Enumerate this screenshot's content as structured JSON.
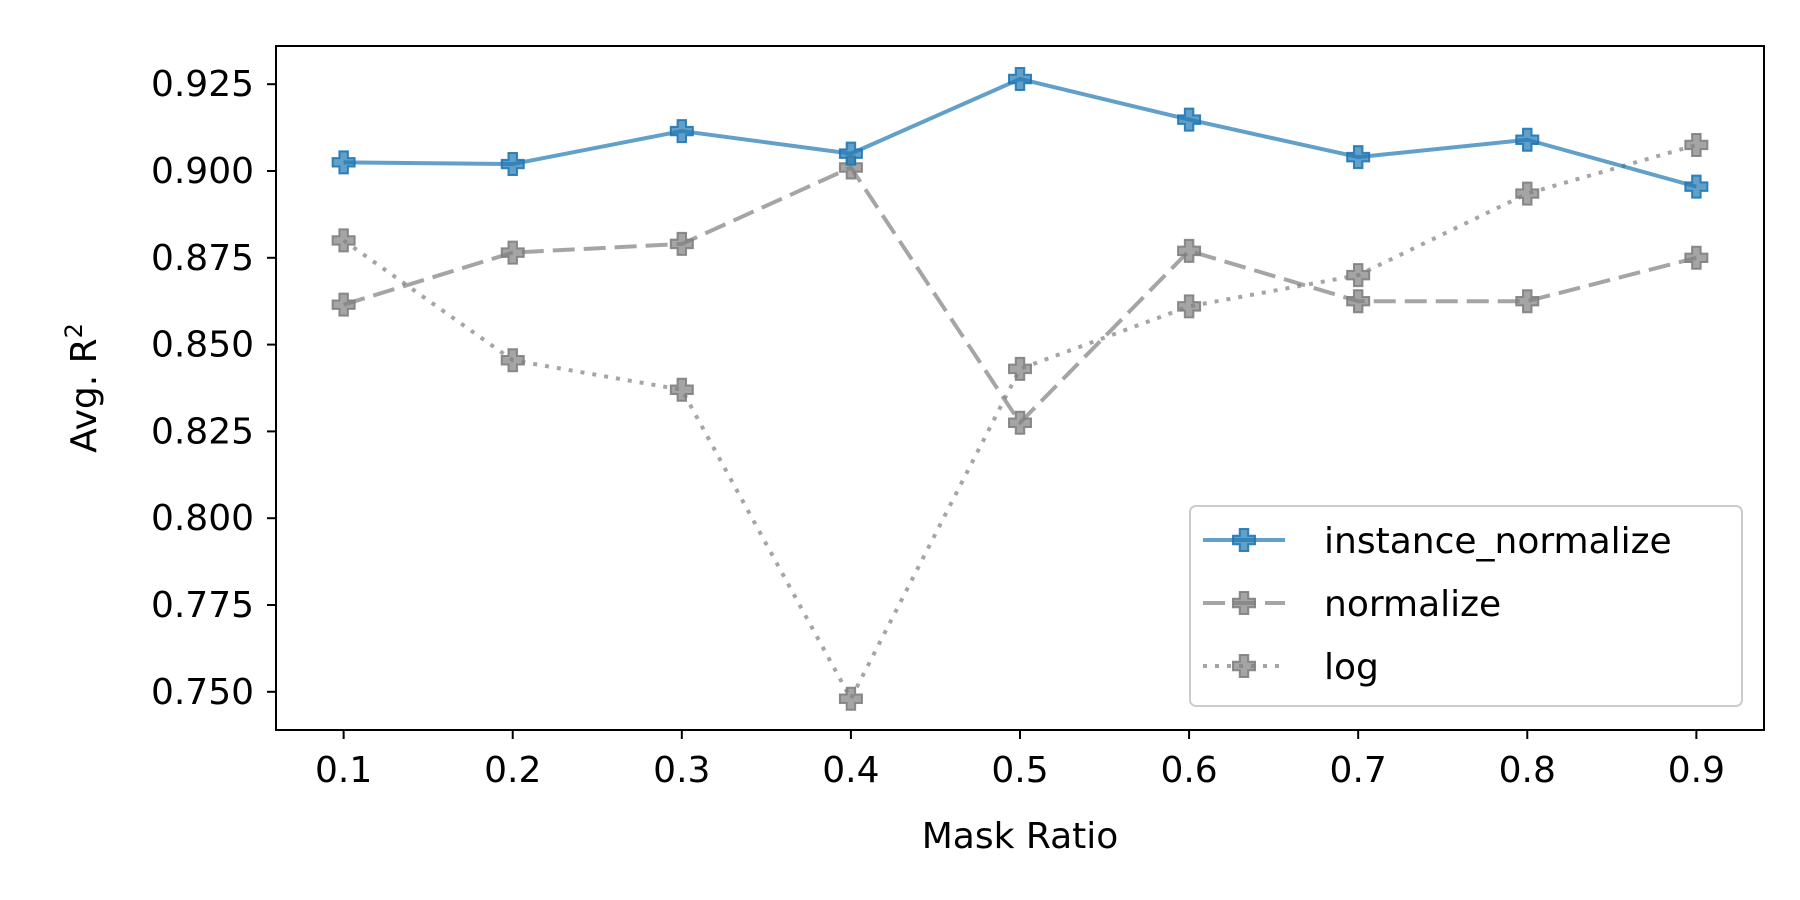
{
  "chart_data": {
    "type": "line",
    "xlabel": "Mask Ratio",
    "ylabel": "Avg. R",
    "ylabel_superscript": "2",
    "x": [
      0.1,
      0.2,
      0.3,
      0.4,
      0.5,
      0.6,
      0.7,
      0.8,
      0.9
    ],
    "x_tick_labels": [
      "0.1",
      "0.2",
      "0.3",
      "0.4",
      "0.5",
      "0.6",
      "0.7",
      "0.8",
      "0.9"
    ],
    "y_ticks": [
      0.75,
      0.775,
      0.8,
      0.825,
      0.85,
      0.875,
      0.9,
      0.925
    ],
    "y_tick_labels": [
      "0.750",
      "0.775",
      "0.800",
      "0.825",
      "0.850",
      "0.875",
      "0.900",
      "0.925"
    ],
    "xlim": [
      0.06,
      0.94
    ],
    "ylim": [
      0.739,
      0.936
    ],
    "grid": false,
    "legend_position": "lower-right",
    "series": [
      {
        "name": "instance_normalize",
        "color": "#1f77b4",
        "linestyle": "solid",
        "marker": "plus-filled",
        "values": [
          0.9025,
          0.902,
          0.9115,
          0.905,
          0.9265,
          0.9148,
          0.904,
          0.909,
          0.8955
        ]
      },
      {
        "name": "normalize",
        "color": "#7f7f7f",
        "linestyle": "dashed",
        "marker": "plus-filled",
        "values": [
          0.8615,
          0.8765,
          0.879,
          0.901,
          0.8275,
          0.877,
          0.8625,
          0.8625,
          0.875
        ]
      },
      {
        "name": "log",
        "color": "#7f7f7f",
        "linestyle": "dotted",
        "marker": "plus-filled",
        "values": [
          0.88,
          0.8455,
          0.837,
          0.748,
          0.843,
          0.861,
          0.87,
          0.8935,
          0.9075
        ]
      }
    ]
  }
}
